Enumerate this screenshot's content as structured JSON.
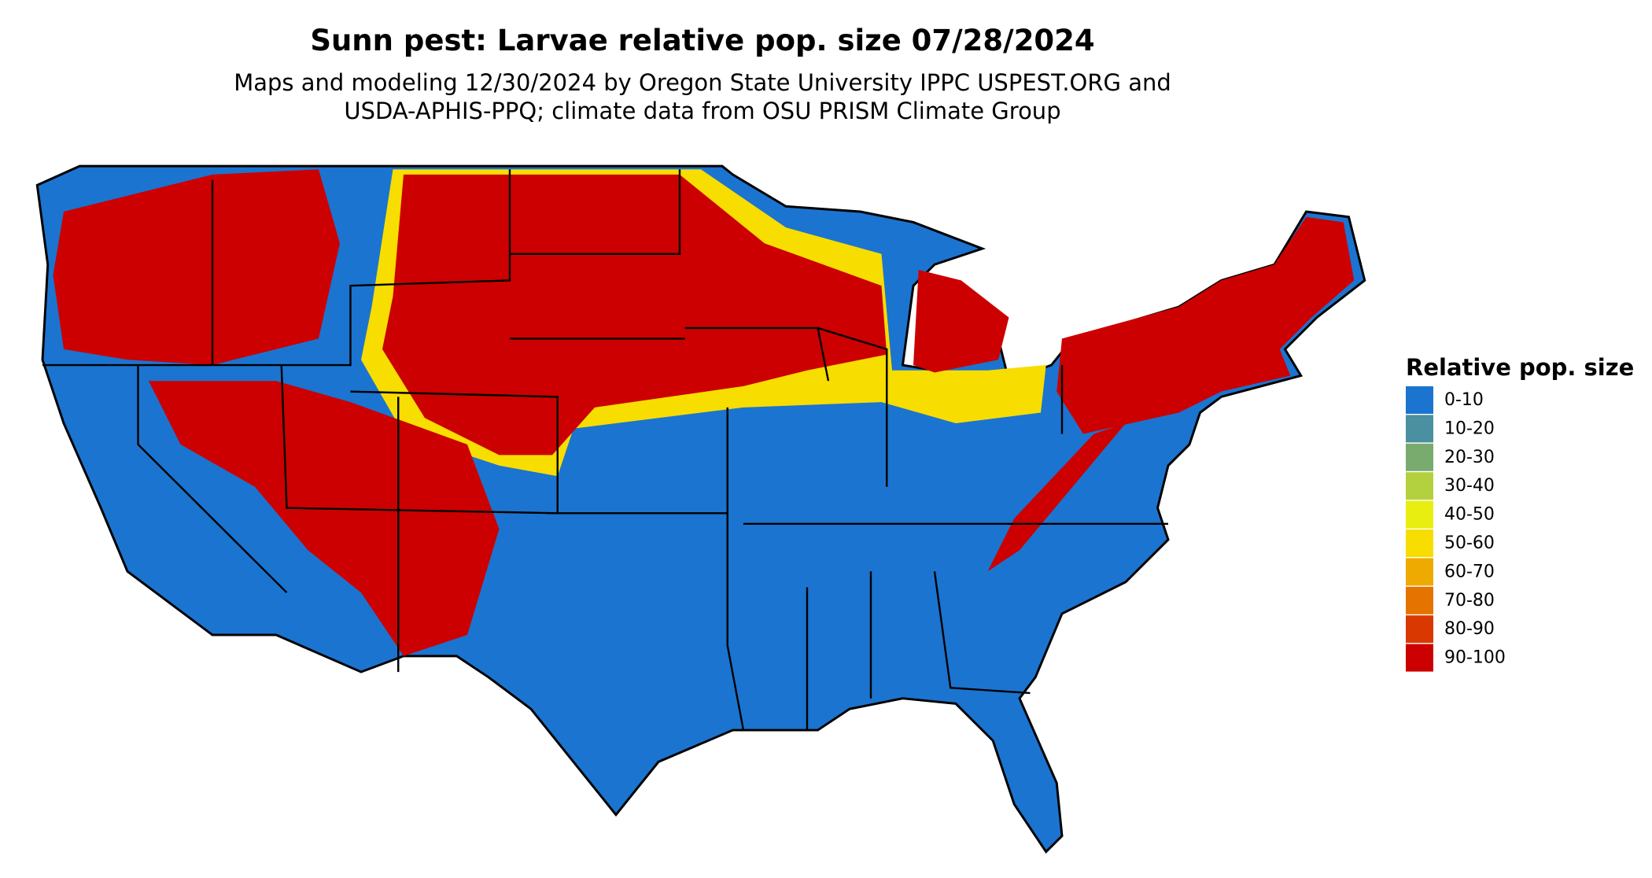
{
  "header": {
    "title": "Sunn pest: Larvae relative pop. size 07/28/2024",
    "subtitle_lines": [
      "Maps and modeling 12/30/2024 by Oregon State University IPPC USPEST.ORG and",
      "USDA-APHIS-PPQ; climate data from OSU PRISM Climate Group"
    ]
  },
  "legend": {
    "title": "Relative pop. size",
    "items": [
      {
        "label": "0-10",
        "color": "#1b74d0"
      },
      {
        "label": "10-20",
        "color": "#4a90a0"
      },
      {
        "label": "20-30",
        "color": "#7aab6e"
      },
      {
        "label": "30-40",
        "color": "#b3d13e"
      },
      {
        "label": "40-50",
        "color": "#e8ee10"
      },
      {
        "label": "50-60",
        "color": "#f7dd00"
      },
      {
        "label": "60-70",
        "color": "#eeaa00"
      },
      {
        "label": "70-80",
        "color": "#e57300"
      },
      {
        "label": "80-90",
        "color": "#d93800"
      },
      {
        "label": "90-100",
        "color": "#cc0000"
      }
    ]
  }
}
